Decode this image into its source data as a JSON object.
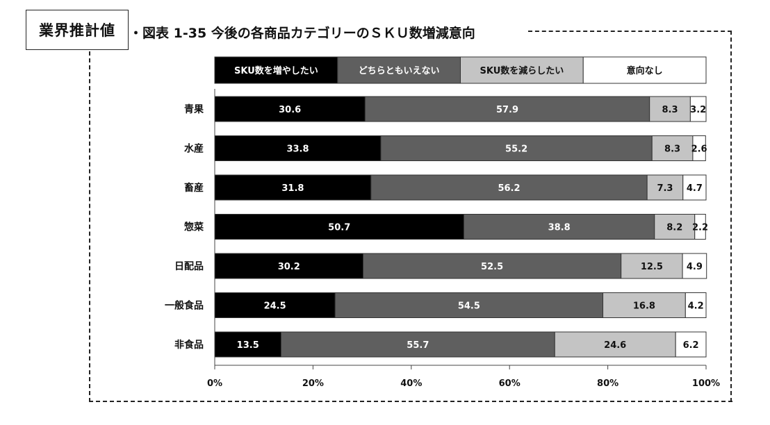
{
  "header": {
    "badge": "業界推計値",
    "title": "・図表 1-35 今後の各商品カテゴリーのＳＫＵ数増減意向"
  },
  "colors": [
    "#000000",
    "#5f5f5f",
    "#c4c4c4",
    "#ffffff"
  ],
  "chart_data": {
    "type": "bar",
    "orientation": "horizontal-stacked-100",
    "title": "今後の各商品カテゴリーのＳＫＵ数増減意向",
    "categories": [
      "青果",
      "水産",
      "畜産",
      "惣菜",
      "日配品",
      "一般食品",
      "非食品"
    ],
    "series": [
      {
        "name": "SKU数を増やしたい",
        "values": [
          30.6,
          33.8,
          31.8,
          50.7,
          30.2,
          24.5,
          13.5
        ]
      },
      {
        "name": "どちらともいえない",
        "values": [
          57.9,
          55.2,
          56.2,
          38.8,
          52.5,
          54.5,
          55.7
        ]
      },
      {
        "name": "SKU数を減らしたい",
        "values": [
          8.3,
          8.3,
          7.3,
          8.2,
          12.5,
          16.8,
          24.6
        ]
      },
      {
        "name": "意向なし",
        "values": [
          3.2,
          2.6,
          4.7,
          2.2,
          4.9,
          4.2,
          6.2
        ]
      }
    ],
    "value_labels": [
      [
        "30.6",
        "57.9",
        "8.3",
        "3.2"
      ],
      [
        "33.8",
        "55.2",
        "8.3",
        "2.6"
      ],
      [
        "31.8",
        "56.2",
        "7.3",
        "4.7"
      ],
      [
        "50.7",
        "38.8",
        "8.2",
        "2.2"
      ],
      [
        "30.2",
        "52.5",
        "12.5",
        "4.9"
      ],
      [
        "24.5",
        "54.5",
        "16.8",
        "4.2"
      ],
      [
        "13.5",
        "55.7",
        "24.6",
        "6.2"
      ]
    ],
    "xlim": [
      0,
      100
    ],
    "xticks": [
      0,
      20,
      40,
      60,
      80,
      100
    ],
    "xtick_labels": [
      "0%",
      "20%",
      "40%",
      "60%",
      "80%",
      "100%"
    ],
    "legend_position": "top",
    "grid": false
  }
}
